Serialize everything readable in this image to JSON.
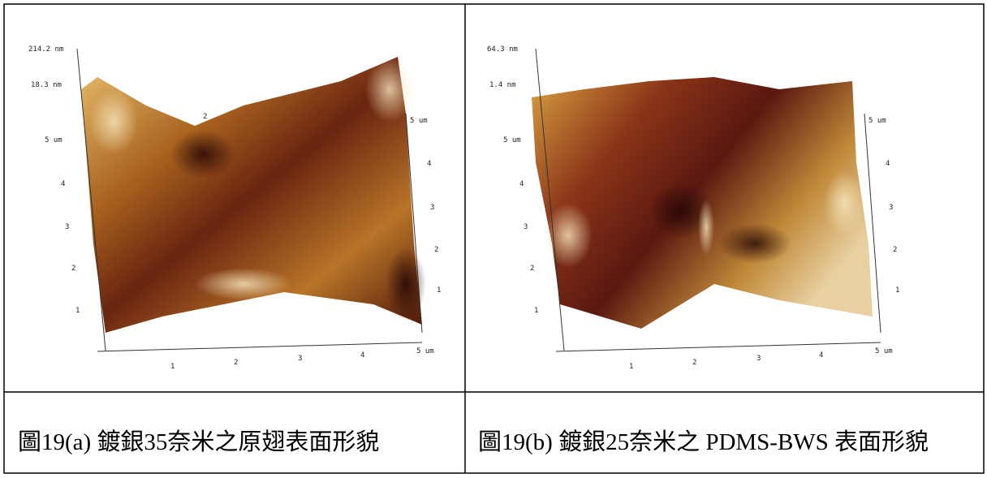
{
  "panels": [
    {
      "image": {
        "z_max": "214.2 nm",
        "z_min": "18.3 nm",
        "marker": "2",
        "left_axis": [
          "5 um",
          "4",
          "3",
          "2",
          "1"
        ],
        "right_axis": [
          "5 um",
          "4",
          "3",
          "2",
          "1"
        ],
        "bottom_axis": [
          "1",
          "2",
          "3",
          "4",
          "5 um"
        ]
      },
      "caption": "圖19(a)  鍍銀35奈米之原翅表面形貌"
    },
    {
      "image": {
        "z_max": "64.3 nm",
        "z_min": "1.4 nm",
        "left_axis": [
          "5 um",
          "4",
          "3",
          "2",
          "1"
        ],
        "right_axis": [
          "5 um",
          "4",
          "3",
          "2",
          "1"
        ],
        "bottom_axis": [
          "1",
          "2",
          "3",
          "4",
          "5 um"
        ]
      },
      "caption": "圖19(b)  鍍銀25奈米之 PDMS-BWS 表面形貌"
    }
  ]
}
